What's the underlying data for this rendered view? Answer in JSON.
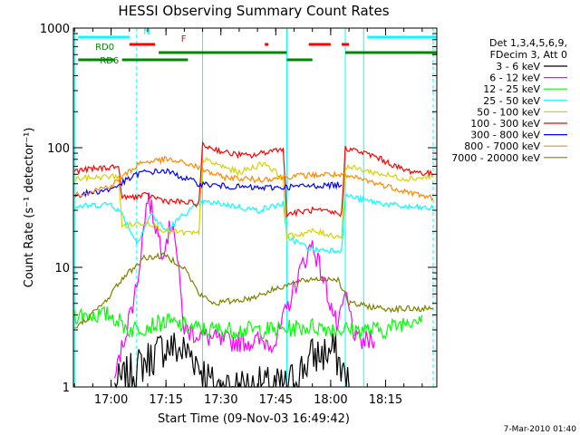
{
  "chart_data": {
    "type": "line",
    "title": "HESSI Observing Summary Count Rates",
    "xlabel": "Start Time (09-Nov-03 16:49:42)",
    "ylabel": "Count Rate (s⁻¹ detector⁻¹)",
    "y_scale": "log",
    "ylim": [
      1,
      1000
    ],
    "xlim": [
      "16:49:42",
      "18:29:00"
    ],
    "x_ticks": [
      "17:00",
      "17:15",
      "17:30",
      "17:45",
      "18:00",
      "18:15"
    ],
    "y_ticks": [
      "1",
      "10",
      "100",
      "1000"
    ],
    "grid": false,
    "legend_position": "right",
    "legend_header": [
      "Det 1,3,4,5,6,9,",
      "FDecim 3, Att 0"
    ],
    "series": [
      {
        "name": "3 - 6 keV",
        "color": "#000000",
        "x": [
          "17:01",
          "17:09",
          "17:15",
          "17:22",
          "17:28",
          "17:48",
          "17:55",
          "18:01",
          "18:05"
        ],
        "y": [
          1,
          1.6,
          2.2,
          1.9,
          1,
          1,
          1.8,
          2.0,
          1
        ]
      },
      {
        "name": "6 - 12 keV",
        "color": "#ff00ff",
        "x": [
          "17:01",
          "17:07",
          "17:10",
          "17:14",
          "17:17",
          "17:20",
          "17:30",
          "17:45",
          "17:52",
          "17:55",
          "17:58",
          "18:02",
          "18:04",
          "18:07",
          "18:12"
        ],
        "y": [
          1.2,
          7,
          40,
          14,
          25,
          3,
          2.4,
          2.4,
          10,
          16,
          8,
          3,
          6,
          2.4,
          2.4
        ]
      },
      {
        "name": "12 - 25 keV",
        "color": "#00ff00",
        "x": [
          "16:50",
          "17:00",
          "17:05",
          "17:15",
          "17:25",
          "17:32",
          "17:45",
          "17:55",
          "18:05",
          "18:15",
          "18:25"
        ],
        "y": [
          4,
          4,
          3,
          3.5,
          3,
          3,
          3,
          3.2,
          3,
          3,
          4
        ]
      },
      {
        "name": "25 - 50 keV",
        "color": "#00ffff",
        "x": [
          "16:50",
          "17:00",
          "17:03",
          "17:07",
          "17:11",
          "17:15",
          "17:20",
          "17:25",
          "17:30",
          "17:35",
          "17:40",
          "17:47",
          "17:48",
          "17:55",
          "18:03",
          "18:04",
          "18:10",
          "18:20",
          "18:28"
        ],
        "y": [
          32,
          34,
          28,
          16,
          28,
          20,
          28,
          35,
          34,
          32,
          30,
          34,
          18,
          14,
          14,
          40,
          36,
          32,
          31
        ]
      },
      {
        "name": "50 - 100 keV",
        "color": "#d4d400",
        "x": [
          "16:50",
          "17:02",
          "17:03",
          "17:10",
          "17:15",
          "17:24",
          "17:25",
          "17:35",
          "17:42",
          "17:47",
          "17:48",
          "17:55",
          "18:03",
          "18:04",
          "18:12",
          "18:20",
          "18:28"
        ],
        "y": [
          55,
          58,
          22,
          24,
          20,
          19,
          80,
          62,
          75,
          55,
          18,
          20,
          18,
          70,
          62,
          55,
          57
        ]
      },
      {
        "name": "100 - 300 keV",
        "color": "#ff0000",
        "x": [
          "16:50",
          "17:02",
          "17:03",
          "17:10",
          "17:15",
          "17:24",
          "17:25",
          "17:32",
          "17:38",
          "17:47",
          "17:48",
          "17:55",
          "18:03",
          "18:04",
          "18:12",
          "18:20",
          "18:28"
        ],
        "y": [
          64,
          70,
          38,
          40,
          36,
          34,
          105,
          90,
          85,
          100,
          28,
          30,
          28,
          100,
          85,
          65,
          60
        ]
      },
      {
        "name": "300 - 800 keV",
        "color": "#0000ff",
        "x": [
          "16:50",
          "17:00",
          "17:08",
          "17:15",
          "17:24",
          "17:30",
          "17:40",
          "17:48",
          "17:55",
          "18:03"
        ],
        "y": [
          40,
          45,
          62,
          64,
          50,
          48,
          46,
          47,
          48,
          49
        ]
      },
      {
        "name": "800 - 7000 keV",
        "color": "#ff8800",
        "x": [
          "16:50",
          "17:00",
          "17:08",
          "17:15",
          "17:22",
          "17:30",
          "17:40",
          "17:50",
          "18:00",
          "18:08",
          "18:15",
          "18:22",
          "18:28"
        ],
        "y": [
          40,
          48,
          75,
          80,
          72,
          57,
          54,
          58,
          60,
          55,
          48,
          42,
          38
        ]
      },
      {
        "name": "7000 - 20000 keV",
        "color": "#808000",
        "x": [
          "16:50",
          "16:58",
          "17:03",
          "17:09",
          "17:15",
          "17:20",
          "17:24",
          "17:28",
          "17:38",
          "17:47",
          "17:55",
          "18:02",
          "18:05",
          "18:15",
          "18:28"
        ],
        "y": [
          3,
          5,
          8,
          12,
          12.5,
          10,
          6,
          5,
          5.5,
          7,
          8,
          8,
          5,
          4.5,
          4.5
        ]
      }
    ],
    "annotations": [
      {
        "label": "N",
        "color": "#00ffff",
        "start": "16:51",
        "end": "17:05"
      },
      {
        "label": "N",
        "color": "#00ffff",
        "start": "18:10",
        "end": "18:29"
      },
      {
        "label": "F",
        "color": "#ff0000",
        "start": "17:05",
        "end": "17:12"
      },
      {
        "label": "F",
        "color": "#ff0000",
        "start": "17:42",
        "end": "17:43"
      },
      {
        "label": "F",
        "color": "#ff0000",
        "start": "17:54",
        "end": "18:00"
      },
      {
        "label": "F",
        "color": "#ff0000",
        "start": "18:03",
        "end": "18:05"
      },
      {
        "label": "RD0",
        "color": "#008800",
        "start": "17:13",
        "end": "17:48"
      },
      {
        "label": "RD0",
        "color": "#008800",
        "start": "18:04",
        "end": "18:29"
      },
      {
        "label": "RD6",
        "color": "#008800",
        "start": "16:51",
        "end": "17:01"
      },
      {
        "label": "RD6",
        "color": "#008800",
        "start": "17:03",
        "end": "17:21"
      },
      {
        "label": "RD6",
        "color": "#008800",
        "start": "17:48",
        "end": "17:55"
      }
    ],
    "night_boundaries_solid": [
      "16:50",
      "17:25",
      "17:48",
      "18:04",
      "18:09"
    ],
    "night_boundaries_dashed": [
      "17:07",
      "18:28"
    ]
  },
  "footer_timestamp": "7-Mar-2010 01:40"
}
